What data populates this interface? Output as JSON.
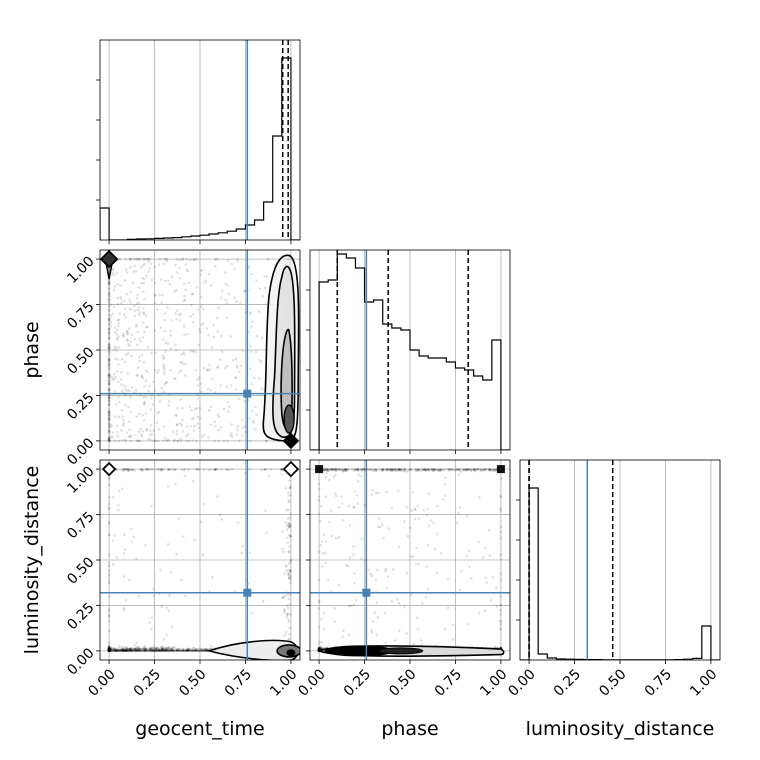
{
  "chart_data": {
    "type": "corner",
    "parameters": [
      "geocent_time",
      "phase",
      "luminosity_distance"
    ],
    "axis_labels": {
      "x": [
        "geocent_time",
        "phase",
        "luminosity_distance"
      ],
      "y": [
        "phase",
        "luminosity_distance"
      ]
    },
    "axis_range": [
      -0.05,
      1.05
    ],
    "ticks": [
      0.0,
      0.25,
      0.5,
      0.75,
      1.0
    ],
    "tick_labels": [
      "0.00",
      "0.25",
      "0.50",
      "0.75",
      "1.00"
    ],
    "truths": {
      "geocent_time": 0.76,
      "phase": 0.26,
      "luminosity_distance": 0.32,
      "color": "#4682b4"
    },
    "quantiles": {
      "geocent_time": [
        0.76,
        0.955,
        0.985
      ],
      "phase": [
        0.1,
        0.38,
        0.82
      ],
      "luminosity_distance": [
        0.0,
        0.0,
        0.46
      ]
    },
    "histograms": {
      "bin_edges": [
        -0.05,
        0.0,
        0.05,
        0.1,
        0.15,
        0.2,
        0.25,
        0.3,
        0.35,
        0.4,
        0.45,
        0.5,
        0.55,
        0.6,
        0.65,
        0.7,
        0.75,
        0.8,
        0.85,
        0.9,
        0.95,
        1.0,
        1.05
      ],
      "geocent_time": [
        0.16,
        0.0,
        0.0,
        0.003,
        0.005,
        0.006,
        0.008,
        0.01,
        0.012,
        0.016,
        0.02,
        0.024,
        0.03,
        0.036,
        0.044,
        0.055,
        0.075,
        0.1,
        0.19,
        0.52,
        0.91,
        0.0
      ],
      "phase": [
        0.0,
        0.84,
        0.85,
        0.98,
        0.96,
        0.91,
        0.74,
        0.75,
        0.63,
        0.61,
        0.6,
        0.5,
        0.47,
        0.46,
        0.46,
        0.44,
        0.41,
        0.4,
        0.37,
        0.35,
        0.55,
        0.0
      ],
      "luminosity_distance": [
        0.0,
        0.86,
        0.03,
        0.01,
        0.005,
        0.004,
        0.003,
        0.002,
        0.002,
        0.001,
        0.001,
        0.001,
        0.001,
        0.001,
        0.001,
        0.001,
        0.001,
        0.002,
        0.004,
        0.008,
        0.17,
        0.0
      ]
    },
    "panels": [
      "geocent_time hist",
      "phase vs geocent_time",
      "phase hist",
      "luminosity_distance vs geocent_time",
      "luminosity_distance vs phase",
      "luminosity_distance hist"
    ],
    "grid": true
  }
}
